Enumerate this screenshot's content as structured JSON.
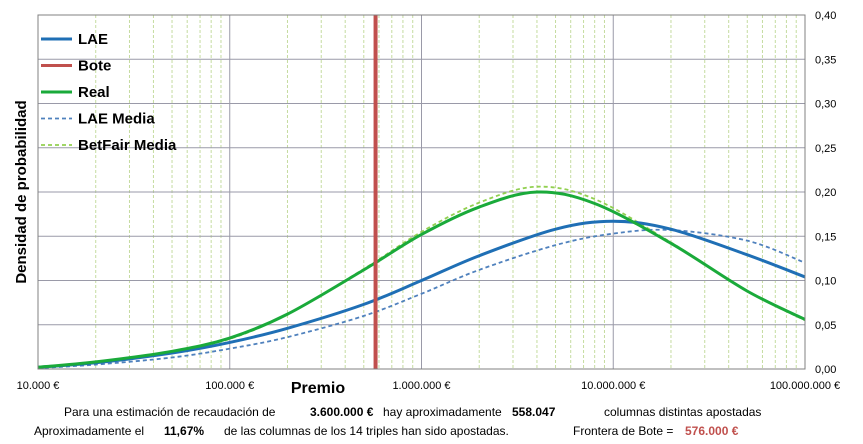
{
  "chart_data": {
    "type": "line",
    "ylabel": "Densidad de probabilidad",
    "xlabel": "Premio",
    "xscale": "log",
    "xlim": [
      10000,
      100000000
    ],
    "ylim": [
      0,
      0.4
    ],
    "x_ticks": [
      10000,
      100000,
      1000000,
      10000000,
      100000000
    ],
    "x_tick_labels": [
      "10.000 €",
      "100.000 €",
      "1.000.000 €",
      "10.000.000 €",
      "100.000.000 €"
    ],
    "y_ticks": [
      0,
      0.05,
      0.1,
      0.15,
      0.2,
      0.25,
      0.3,
      0.35,
      0.4
    ],
    "y_tick_labels": [
      "0,00",
      "0,05",
      "0,10",
      "0,15",
      "0,20",
      "0,25",
      "0,30",
      "0,35",
      "0,40"
    ],
    "y_axis_side": "right",
    "grid": true,
    "legend_position": "top-left",
    "bote_x": 576000,
    "series": [
      {
        "name": "LAE",
        "style": "solid",
        "color": "#1f6fb5",
        "x": [
          10000,
          20000,
          50000,
          100000,
          200000,
          500000,
          1000000,
          2000000,
          5000000,
          10000000,
          20000000,
          50000000,
          100000000
        ],
        "y": [
          0.002,
          0.007,
          0.018,
          0.03,
          0.046,
          0.073,
          0.1,
          0.128,
          0.158,
          0.167,
          0.158,
          0.129,
          0.104
        ]
      },
      {
        "name": "Bote",
        "style": "solid",
        "color": "#c0504d",
        "x": [
          576000,
          576000
        ],
        "y": [
          0,
          0.4
        ]
      },
      {
        "name": "Real",
        "style": "solid",
        "color": "#1aaa3a",
        "x": [
          10000,
          20000,
          50000,
          100000,
          200000,
          500000,
          1000000,
          2000000,
          4000000,
          8000000,
          20000000,
          50000000,
          100000000
        ],
        "y": [
          0.002,
          0.008,
          0.02,
          0.035,
          0.062,
          0.112,
          0.152,
          0.183,
          0.2,
          0.187,
          0.142,
          0.088,
          0.056
        ]
      },
      {
        "name": "LAE Media",
        "style": "dashed",
        "color": "#4f81bd",
        "x": [
          10000,
          20000,
          50000,
          100000,
          200000,
          500000,
          1000000,
          2000000,
          5000000,
          10000000,
          20000000,
          50000000,
          100000000
        ],
        "y": [
          0.001,
          0.005,
          0.013,
          0.023,
          0.036,
          0.06,
          0.085,
          0.112,
          0.14,
          0.153,
          0.157,
          0.145,
          0.12
        ]
      },
      {
        "name": "BetFair Media",
        "style": "dashed",
        "color": "#92d050",
        "x": [
          10000,
          20000,
          50000,
          100000,
          200000,
          500000,
          1000000,
          2000000,
          4000000,
          8000000,
          20000000,
          50000000,
          100000000
        ],
        "y": [
          0.002,
          0.008,
          0.02,
          0.034,
          0.062,
          0.113,
          0.155,
          0.188,
          0.206,
          0.192,
          0.143,
          0.088,
          0.055
        ]
      }
    ]
  },
  "footer": {
    "line1_a": "Para  una estimación de recaudación de",
    "line1_amount": "3.600.000 €",
    "line1_b": "hay aproximadamente",
    "line1_count": "558.047",
    "line1_c": "columnas distintas apostadas",
    "line2_a": "Aproximadamente el",
    "line2_pct": "11,67%",
    "line2_b": "de las columnas de los 14 triples han sido apostadas.",
    "line2_c": "Frontera de Bote =",
    "line2_bote": "576.000 €"
  }
}
